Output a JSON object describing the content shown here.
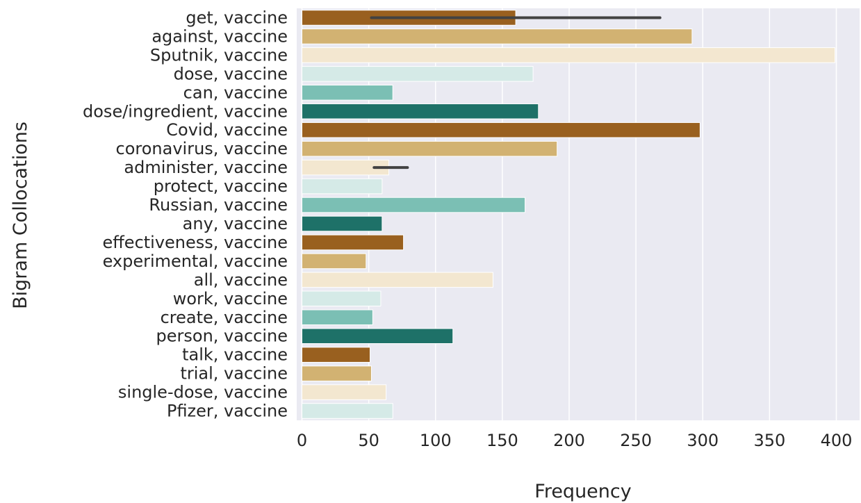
{
  "chart_data": {
    "type": "bar",
    "orientation": "horizontal",
    "title": "",
    "xlabel": "Frequency",
    "ylabel": "Bigram Collocations",
    "xlim": [
      0,
      418
    ],
    "xticks": [
      0,
      50,
      100,
      150,
      200,
      250,
      300,
      350,
      400
    ],
    "grid": true,
    "legend": "none",
    "background": "#eaeaf2",
    "categories": [
      "get, vaccine",
      "against, vaccine",
      "Sputnik, vaccine",
      "dose, vaccine",
      "can, vaccine",
      "dose/ingredient, vaccine",
      "Covid, vaccine",
      "coronavirus, vaccine",
      "administer, vaccine",
      "protect, vaccine",
      "Russian, vaccine",
      "any, vaccine",
      "effectiveness, vaccine",
      "experimental, vaccine",
      "all, vaccine",
      "work, vaccine",
      "create, vaccine",
      "person, vaccine",
      "talk, vaccine",
      "trial, vaccine",
      "single-dose, vaccine",
      "Pfizer, vaccine"
    ],
    "values": [
      160,
      292,
      399,
      173,
      68,
      177,
      298,
      191,
      65,
      60,
      167,
      60,
      76,
      48,
      143,
      59,
      53,
      113,
      51,
      52,
      63,
      68
    ],
    "error_bars": [
      {
        "category": "get, vaccine",
        "low": 52,
        "high": 268
      },
      {
        "category": "administer, vaccine",
        "low": 54,
        "high": 79
      }
    ],
    "palette": [
      "#99601f",
      "#d2b272",
      "#f3e7d0",
      "#d5eae7",
      "#7bbfb4",
      "#1e7168"
    ]
  }
}
